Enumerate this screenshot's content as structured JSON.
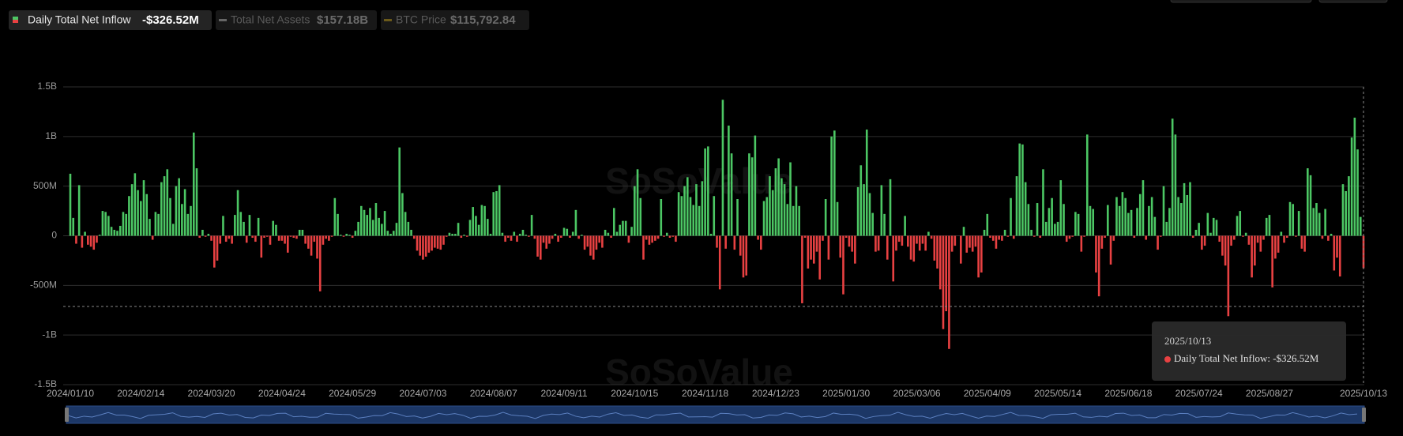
{
  "chart_data": {
    "type": "bar",
    "watermark": "SoSoValue",
    "series": [
      {
        "name": "Daily Total Net Inflow",
        "latest": "-$326.52M",
        "positive_color": "#4cc764",
        "negative_color": "#e84142",
        "values": [
          625,
          180,
          -80,
          510,
          -120,
          40,
          -90,
          -110,
          -140,
          -70,
          10,
          250,
          240,
          200,
          90,
          60,
          50,
          100,
          240,
          220,
          400,
          520,
          630,
          460,
          350,
          560,
          420,
          170,
          -40,
          240,
          220,
          540,
          600,
          670,
          380,
          120,
          500,
          580,
          320,
          470,
          220,
          300,
          1040,
          680,
          -20,
          60,
          -10,
          20,
          -50,
          -320,
          -250,
          -80,
          200,
          -60,
          -30,
          -80,
          210,
          460,
          240,
          140,
          -70,
          210,
          -20,
          -60,
          180,
          -220,
          -20,
          -10,
          -90,
          150,
          110,
          -50,
          -50,
          -80,
          -170,
          -10,
          -20,
          -30,
          60,
          60,
          -80,
          -130,
          -200,
          -60,
          -230,
          -560,
          -90,
          -30,
          -50,
          -10,
          380,
          220,
          10,
          -10,
          20,
          10,
          -20,
          50,
          140,
          300,
          260,
          210,
          280,
          160,
          330,
          180,
          120,
          250,
          50,
          20,
          50,
          130,
          890,
          430,
          240,
          140,
          60,
          -30,
          -150,
          -200,
          -240,
          -210,
          -170,
          -150,
          -120,
          -130,
          -140,
          -90,
          -10,
          30,
          20,
          20,
          130,
          -20,
          10,
          -10,
          160,
          290,
          200,
          110,
          310,
          300,
          170,
          20,
          440,
          450,
          510,
          30,
          -60,
          -20,
          -50,
          40,
          -60,
          20,
          60,
          10,
          -10,
          210,
          -30,
          -210,
          -240,
          -70,
          -130,
          -80,
          -30,
          20,
          -60,
          -20,
          80,
          70,
          -20,
          40,
          260,
          -30,
          10,
          -140,
          -110,
          -200,
          -240,
          -140,
          -70,
          -120,
          60,
          30,
          -20,
          280,
          40,
          110,
          150,
          150,
          -70,
          90,
          500,
          670,
          380,
          -240,
          -40,
          -90,
          -70,
          -50,
          -30,
          370,
          -10,
          30,
          -20,
          -10,
          -60,
          440,
          400,
          500,
          590,
          390,
          310,
          520,
          300,
          550,
          880,
          900,
          20,
          400,
          -120,
          -540,
          1370,
          -130,
          1110,
          830,
          -140,
          370,
          -200,
          -420,
          -400,
          830,
          790,
          1010,
          -40,
          -140,
          350,
          390,
          600,
          460,
          680,
          780,
          580,
          520,
          320,
          740,
          300,
          500,
          300,
          -680,
          -20,
          -330,
          -240,
          -280,
          -160,
          -440,
          -50,
          370,
          -240,
          1000,
          1060,
          340,
          -220,
          -590,
          -20,
          -110,
          -160,
          -280,
          490,
          710,
          520,
          1070,
          430,
          230,
          -160,
          -150,
          510,
          220,
          -240,
          570,
          -460,
          -150,
          -60,
          -100,
          200,
          -110,
          -240,
          -260,
          -80,
          -150,
          -80,
          -150,
          40,
          -30,
          -250,
          -330,
          -540,
          -940,
          -760,
          -1140,
          -160,
          -100,
          0,
          -280,
          90,
          -170,
          -120,
          -160,
          -110,
          -420,
          -370,
          60,
          220,
          -20,
          -50,
          -130,
          -40,
          -50,
          60,
          -10,
          380,
          -30,
          600,
          930,
          920,
          540,
          320,
          60,
          -10,
          330,
          -20,
          670,
          140,
          280,
          380,
          120,
          140,
          560,
          320,
          -60,
          -30,
          -10,
          240,
          220,
          -160,
          -10,
          1020,
          300,
          270,
          -370,
          -610,
          -130,
          -20,
          310,
          -290,
          -50,
          390,
          300,
          440,
          380,
          230,
          260,
          -20,
          280,
          420,
          560,
          -40,
          300,
          390,
          190,
          -140,
          -10,
          500,
          140,
          280,
          1180,
          1020,
          390,
          330,
          530,
          410,
          540,
          -20,
          60,
          130,
          -140,
          -100,
          230,
          30,
          180,
          160,
          -60,
          -200,
          -300,
          -810,
          -100,
          -40,
          200,
          250,
          -10,
          30,
          -90,
          -420,
          -300,
          -70,
          -160,
          -40,
          180,
          210,
          -520,
          -230,
          -170,
          40,
          -70,
          -20,
          340,
          320,
          -10,
          250,
          -130,
          -160,
          680,
          610,
          280,
          330,
          230,
          -30,
          270,
          -50,
          20,
          -350,
          -220,
          -410,
          520,
          450,
          600,
          990,
          1190,
          870,
          190,
          -326.52
        ]
      }
    ],
    "inactive_series": [
      {
        "name": "Total Net Assets",
        "latest": "$157.18B"
      },
      {
        "name": "BTC Price",
        "latest": "$115,792.84"
      }
    ],
    "categories": [
      "2024/01/10",
      null,
      null,
      null,
      null,
      null,
      null,
      null,
      null,
      null,
      null,
      null,
      null,
      null,
      null,
      null,
      null,
      null,
      null,
      null,
      null,
      null,
      null,
      null,
      "2024/02/14",
      null,
      null,
      null,
      null,
      null,
      null,
      null,
      null,
      null,
      null,
      null,
      null,
      null,
      null,
      null,
      null,
      null,
      null,
      null,
      null,
      null,
      null,
      null,
      "2024/03/20",
      null,
      null,
      null,
      null,
      null,
      null,
      null,
      null,
      null,
      null,
      null,
      null,
      null,
      null,
      null,
      null,
      null,
      null,
      null,
      null,
      null,
      null,
      null,
      "2024/04/24",
      null,
      null,
      null,
      null,
      null,
      null,
      null,
      null,
      null,
      null,
      null,
      null,
      null,
      null,
      null,
      null,
      null,
      null,
      null,
      null,
      null,
      null,
      null,
      "2024/05/29",
      null,
      null,
      null,
      null,
      null,
      null,
      null,
      null,
      null,
      null,
      null,
      null,
      null,
      null,
      null,
      null,
      null,
      null,
      null,
      null,
      null,
      null,
      null,
      "2024/07/03",
      null,
      null,
      null,
      null,
      null,
      null,
      null,
      null,
      null,
      null,
      null,
      null,
      null,
      null,
      null,
      null,
      null,
      null,
      null,
      null,
      null,
      null,
      null,
      "2024/08/07",
      null,
      null,
      null,
      null,
      null,
      null,
      null,
      null,
      null,
      null,
      null,
      null,
      null,
      null,
      null,
      null,
      null,
      null,
      null,
      null,
      null,
      null,
      null,
      "2024/09/11",
      null,
      null,
      null,
      null,
      null,
      null,
      null,
      null,
      null,
      null,
      null,
      null,
      null,
      null,
      null,
      null,
      null,
      null,
      null,
      null,
      null,
      null,
      null,
      "2024/10/15",
      null,
      null,
      null,
      null,
      null,
      null,
      null,
      null,
      null,
      null,
      null,
      null,
      null,
      null,
      null,
      null,
      null,
      null,
      null,
      null,
      null,
      null,
      null,
      "2024/11/18",
      null,
      null,
      null,
      null,
      null,
      null,
      null,
      null,
      null,
      null,
      null,
      null,
      null,
      null,
      null,
      null,
      null,
      null,
      null,
      null,
      null,
      null,
      null,
      "2024/12/23",
      null,
      null,
      null,
      null,
      null,
      null,
      null,
      null,
      null,
      null,
      null,
      null,
      null,
      null,
      null,
      null,
      null,
      null,
      null,
      null,
      null,
      null,
      null,
      "2025/01/30",
      null,
      null,
      null,
      null,
      null,
      null,
      null,
      null,
      null,
      null,
      null,
      null,
      null,
      null,
      null,
      null,
      null,
      null,
      null,
      null,
      null,
      null,
      null,
      "2025/03/06",
      null,
      null,
      null,
      null,
      null,
      null,
      null,
      null,
      null,
      null,
      null,
      null,
      null,
      null,
      null,
      null,
      null,
      null,
      null,
      null,
      null,
      null,
      null,
      "2025/04/09",
      null,
      null,
      null,
      null,
      null,
      null,
      null,
      null,
      null,
      null,
      null,
      null,
      null,
      null,
      null,
      null,
      null,
      null,
      null,
      null,
      null,
      null,
      null,
      "2025/05/14",
      null,
      null,
      null,
      null,
      null,
      null,
      null,
      null,
      null,
      null,
      null,
      null,
      null,
      null,
      null,
      null,
      null,
      null,
      null,
      null,
      null,
      null,
      null,
      "2025/06/18",
      null,
      null,
      null,
      null,
      null,
      null,
      null,
      null,
      null,
      null,
      null,
      null,
      null,
      null,
      null,
      null,
      null,
      null,
      null,
      null,
      null,
      null,
      null,
      "2025/07/24",
      null,
      null,
      null,
      null,
      null,
      null,
      null,
      null,
      null,
      null,
      null,
      null,
      null,
      null,
      null,
      null,
      null,
      null,
      null,
      null,
      null,
      null,
      null,
      "2025/08/27",
      null,
      null,
      null,
      null,
      null,
      null,
      null,
      null,
      null,
      null,
      null,
      null,
      null,
      null,
      null,
      null,
      null,
      null,
      null,
      null,
      null,
      null,
      null,
      null,
      null,
      null,
      null,
      null,
      null,
      null,
      null,
      "2025/10/13"
    ],
    "ylim": [
      -1500,
      1500
    ],
    "yticks": [
      {
        "value": -1500,
        "label": "-1.5B"
      },
      {
        "value": -1000,
        "label": "-1B"
      },
      {
        "value": -500,
        "label": "-500M"
      },
      0,
      {
        "value": 500,
        "label": "500M"
      },
      {
        "value": 1000,
        "label": "1B"
      },
      {
        "value": 1500,
        "label": "1.5B"
      }
    ],
    "grid": true,
    "tooltip": {
      "date": "2025/10/13",
      "text": "Daily Total Net Inflow: -$326.52M"
    }
  }
}
